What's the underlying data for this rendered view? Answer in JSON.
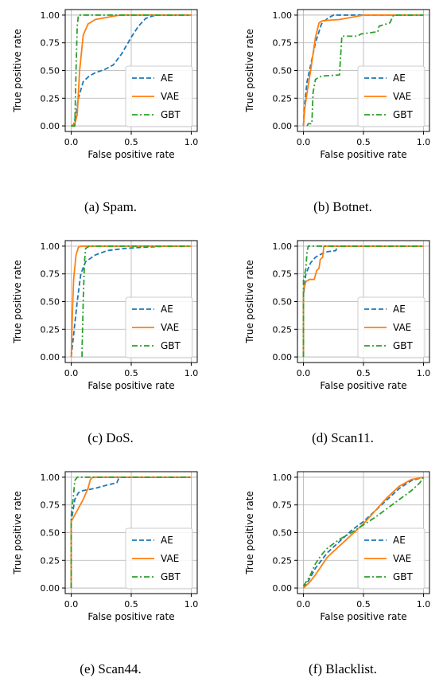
{
  "figure": {
    "colors": {
      "AE": "#1f77b4",
      "VAE": "#ff7f0e",
      "GBT": "#2ca02c",
      "grid": "#b0b0b0"
    }
  },
  "chart_data": [
    {
      "type": "line",
      "caption": "(a) Spam.",
      "xlabel": "False positive rate",
      "ylabel": "True positive rate",
      "xlim": [
        0,
        1
      ],
      "ylim": [
        0,
        1
      ],
      "xticks": [
        "0.0",
        "0.5",
        "1.0"
      ],
      "yticks": [
        "0.00",
        "0.25",
        "0.50",
        "0.75",
        "1.00"
      ],
      "grid": true,
      "legend_position": "lower-right",
      "series": [
        {
          "name": "AE",
          "style": "dashed",
          "points": [
            [
              0,
              0
            ],
            [
              0.02,
              0.01
            ],
            [
              0.04,
              0.1
            ],
            [
              0.06,
              0.25
            ],
            [
              0.1,
              0.4
            ],
            [
              0.15,
              0.45
            ],
            [
              0.2,
              0.48
            ],
            [
              0.28,
              0.51
            ],
            [
              0.35,
              0.55
            ],
            [
              0.42,
              0.65
            ],
            [
              0.5,
              0.8
            ],
            [
              0.56,
              0.9
            ],
            [
              0.62,
              0.97
            ],
            [
              0.7,
              1.0
            ],
            [
              1.0,
              1.0
            ]
          ]
        },
        {
          "name": "VAE",
          "style": "solid",
          "points": [
            [
              0,
              0
            ],
            [
              0.03,
              0.02
            ],
            [
              0.05,
              0.1
            ],
            [
              0.07,
              0.5
            ],
            [
              0.1,
              0.82
            ],
            [
              0.14,
              0.92
            ],
            [
              0.2,
              0.96
            ],
            [
              0.3,
              0.98
            ],
            [
              0.4,
              1.0
            ],
            [
              1.0,
              1.0
            ]
          ]
        },
        {
          "name": "GBT",
          "style": "dashdot",
          "points": [
            [
              0,
              0
            ],
            [
              0.03,
              0.0
            ],
            [
              0.04,
              0.5
            ],
            [
              0.05,
              0.9
            ],
            [
              0.06,
              1.0
            ],
            [
              1.0,
              1.0
            ]
          ]
        }
      ]
    },
    {
      "type": "line",
      "caption": "(b) Botnet.",
      "xlabel": "False positive rate",
      "ylabel": "True positive rate",
      "xlim": [
        0,
        1
      ],
      "ylim": [
        0,
        1
      ],
      "xticks": [
        "0.0",
        "0.5",
        "1.0"
      ],
      "yticks": [
        "0.00",
        "0.25",
        "0.50",
        "0.75",
        "1.00"
      ],
      "grid": true,
      "legend_position": "lower-right",
      "series": [
        {
          "name": "AE",
          "style": "dashed",
          "points": [
            [
              0,
              0
            ],
            [
              0.01,
              0.2
            ],
            [
              0.03,
              0.4
            ],
            [
              0.06,
              0.55
            ],
            [
              0.1,
              0.75
            ],
            [
              0.15,
              0.92
            ],
            [
              0.2,
              0.97
            ],
            [
              0.25,
              1.0
            ],
            [
              1.0,
              1.0
            ]
          ]
        },
        {
          "name": "VAE",
          "style": "solid",
          "points": [
            [
              0,
              0
            ],
            [
              0.01,
              0.15
            ],
            [
              0.03,
              0.3
            ],
            [
              0.06,
              0.5
            ],
            [
              0.1,
              0.8
            ],
            [
              0.13,
              0.93
            ],
            [
              0.16,
              0.95
            ],
            [
              0.3,
              0.96
            ],
            [
              0.4,
              0.98
            ],
            [
              0.5,
              1.0
            ],
            [
              1.0,
              1.0
            ]
          ]
        },
        {
          "name": "GBT",
          "style": "dashdot",
          "points": [
            [
              0.03,
              0
            ],
            [
              0.04,
              0.02
            ],
            [
              0.07,
              0.02
            ],
            [
              0.08,
              0.3
            ],
            [
              0.1,
              0.42
            ],
            [
              0.15,
              0.45
            ],
            [
              0.3,
              0.46
            ],
            [
              0.32,
              0.81
            ],
            [
              0.45,
              0.81
            ],
            [
              0.48,
              0.83
            ],
            [
              0.62,
              0.85
            ],
            [
              0.63,
              0.9
            ],
            [
              0.72,
              0.93
            ],
            [
              0.75,
              1.0
            ],
            [
              1.0,
              1.0
            ]
          ]
        }
      ]
    },
    {
      "type": "line",
      "caption": "(c) DoS.",
      "xlabel": "False positive rate",
      "ylabel": "True positive rate",
      "xlim": [
        0,
        1
      ],
      "ylim": [
        0,
        1
      ],
      "xticks": [
        "0.0",
        "0.5",
        "1.0"
      ],
      "yticks": [
        "0.00",
        "0.25",
        "0.50",
        "0.75",
        "1.00"
      ],
      "grid": true,
      "legend_position": "lower-right",
      "series": [
        {
          "name": "AE",
          "style": "dashed",
          "points": [
            [
              0,
              0
            ],
            [
              0.02,
              0.2
            ],
            [
              0.05,
              0.5
            ],
            [
              0.08,
              0.75
            ],
            [
              0.12,
              0.86
            ],
            [
              0.2,
              0.92
            ],
            [
              0.3,
              0.96
            ],
            [
              0.45,
              0.98
            ],
            [
              0.6,
              0.99
            ],
            [
              0.8,
              1.0
            ],
            [
              1.0,
              1.0
            ]
          ]
        },
        {
          "name": "VAE",
          "style": "solid",
          "points": [
            [
              0,
              0
            ],
            [
              0.01,
              0.4
            ],
            [
              0.02,
              0.7
            ],
            [
              0.04,
              0.92
            ],
            [
              0.06,
              0.99
            ],
            [
              0.08,
              1.0
            ],
            [
              1.0,
              1.0
            ]
          ]
        },
        {
          "name": "GBT",
          "style": "dashdot",
          "points": [
            [
              0.09,
              0
            ],
            [
              0.09,
              0.05
            ],
            [
              0.1,
              0.5
            ],
            [
              0.11,
              0.85
            ],
            [
              0.12,
              0.98
            ],
            [
              0.15,
              1.0
            ],
            [
              1.0,
              1.0
            ]
          ]
        }
      ]
    },
    {
      "type": "line",
      "caption": "(d) Scan11.",
      "xlabel": "False positive rate",
      "ylabel": "True positive rate",
      "xlim": [
        0,
        1
      ],
      "ylim": [
        0,
        1
      ],
      "xticks": [
        "0.0",
        "0.5",
        "1.0"
      ],
      "yticks": [
        "0.00",
        "0.25",
        "0.50",
        "0.75",
        "1.00"
      ],
      "grid": true,
      "legend_position": "lower-right",
      "series": [
        {
          "name": "AE",
          "style": "dashed",
          "points": [
            [
              0,
              0
            ],
            [
              0.0,
              0.55
            ],
            [
              0.02,
              0.75
            ],
            [
              0.06,
              0.85
            ],
            [
              0.1,
              0.9
            ],
            [
              0.15,
              0.93
            ],
            [
              0.2,
              0.95
            ],
            [
              0.27,
              0.96
            ],
            [
              0.28,
              1.0
            ],
            [
              1.0,
              1.0
            ]
          ]
        },
        {
          "name": "VAE",
          "style": "solid",
          "points": [
            [
              0,
              0
            ],
            [
              0.0,
              0.6
            ],
            [
              0.02,
              0.68
            ],
            [
              0.05,
              0.7
            ],
            [
              0.09,
              0.7
            ],
            [
              0.11,
              0.78
            ],
            [
              0.13,
              0.8
            ],
            [
              0.14,
              0.88
            ],
            [
              0.16,
              0.9
            ],
            [
              0.17,
              1.0
            ],
            [
              1.0,
              1.0
            ]
          ]
        },
        {
          "name": "GBT",
          "style": "dashdot",
          "points": [
            [
              0,
              0
            ],
            [
              0.0,
              0.7
            ],
            [
              0.02,
              0.8
            ],
            [
              0.03,
              0.95
            ],
            [
              0.04,
              1.0
            ],
            [
              1.0,
              1.0
            ]
          ]
        }
      ]
    },
    {
      "type": "line",
      "caption": "(e) Scan44.",
      "xlabel": "False positive rate",
      "ylabel": "True positive rate",
      "xlim": [
        0,
        1
      ],
      "ylim": [
        0,
        1
      ],
      "xticks": [
        "0.0",
        "0.5",
        "1.0"
      ],
      "yticks": [
        "0.00",
        "0.25",
        "0.50",
        "0.75",
        "1.00"
      ],
      "grid": true,
      "legend_position": "lower-right",
      "series": [
        {
          "name": "AE",
          "style": "dashed",
          "points": [
            [
              0,
              0
            ],
            [
              0.0,
              0.6
            ],
            [
              0.03,
              0.8
            ],
            [
              0.06,
              0.86
            ],
            [
              0.1,
              0.88
            ],
            [
              0.2,
              0.9
            ],
            [
              0.3,
              0.93
            ],
            [
              0.38,
              0.95
            ],
            [
              0.4,
              1.0
            ],
            [
              1.0,
              1.0
            ]
          ]
        },
        {
          "name": "VAE",
          "style": "solid",
          "points": [
            [
              0,
              0
            ],
            [
              0.0,
              0.6
            ],
            [
              0.03,
              0.66
            ],
            [
              0.06,
              0.72
            ],
            [
              0.1,
              0.8
            ],
            [
              0.12,
              0.85
            ],
            [
              0.14,
              0.9
            ],
            [
              0.16,
              0.98
            ],
            [
              0.18,
              1.0
            ],
            [
              1.0,
              1.0
            ]
          ]
        },
        {
          "name": "GBT",
          "style": "dashdot",
          "points": [
            [
              0,
              0
            ],
            [
              0.0,
              0.65
            ],
            [
              0.02,
              0.85
            ],
            [
              0.03,
              0.97
            ],
            [
              0.05,
              1.0
            ],
            [
              1.0,
              1.0
            ]
          ]
        }
      ]
    },
    {
      "type": "line",
      "caption": "(f) Blacklist.",
      "xlabel": "False positive rate",
      "ylabel": "True positive rate",
      "xlim": [
        0,
        1
      ],
      "ylim": [
        0,
        1
      ],
      "xticks": [
        "0.0",
        "0.5",
        "1.0"
      ],
      "yticks": [
        "0.00",
        "0.25",
        "0.50",
        "0.75",
        "1.00"
      ],
      "grid": true,
      "legend_position": "lower-right",
      "series": [
        {
          "name": "AE",
          "style": "dashed",
          "points": [
            [
              0,
              0
            ],
            [
              0.05,
              0.08
            ],
            [
              0.1,
              0.18
            ],
            [
              0.2,
              0.32
            ],
            [
              0.3,
              0.42
            ],
            [
              0.4,
              0.52
            ],
            [
              0.5,
              0.6
            ],
            [
              0.6,
              0.7
            ],
            [
              0.7,
              0.8
            ],
            [
              0.8,
              0.9
            ],
            [
              0.9,
              0.97
            ],
            [
              1.0,
              1.0
            ]
          ]
        },
        {
          "name": "VAE",
          "style": "solid",
          "points": [
            [
              0,
              0
            ],
            [
              0.05,
              0.05
            ],
            [
              0.1,
              0.12
            ],
            [
              0.15,
              0.2
            ],
            [
              0.2,
              0.28
            ],
            [
              0.3,
              0.38
            ],
            [
              0.4,
              0.48
            ],
            [
              0.5,
              0.58
            ],
            [
              0.6,
              0.7
            ],
            [
              0.7,
              0.82
            ],
            [
              0.8,
              0.92
            ],
            [
              0.9,
              0.98
            ],
            [
              1.0,
              1.0
            ]
          ]
        },
        {
          "name": "GBT",
          "style": "dashdot",
          "points": [
            [
              0,
              0.02
            ],
            [
              0.05,
              0.1
            ],
            [
              0.1,
              0.22
            ],
            [
              0.15,
              0.3
            ],
            [
              0.2,
              0.36
            ],
            [
              0.3,
              0.44
            ],
            [
              0.4,
              0.5
            ],
            [
              0.5,
              0.57
            ],
            [
              0.6,
              0.64
            ],
            [
              0.7,
              0.72
            ],
            [
              0.8,
              0.8
            ],
            [
              0.9,
              0.88
            ],
            [
              0.97,
              0.95
            ],
            [
              1.0,
              1.0
            ]
          ]
        }
      ]
    }
  ]
}
